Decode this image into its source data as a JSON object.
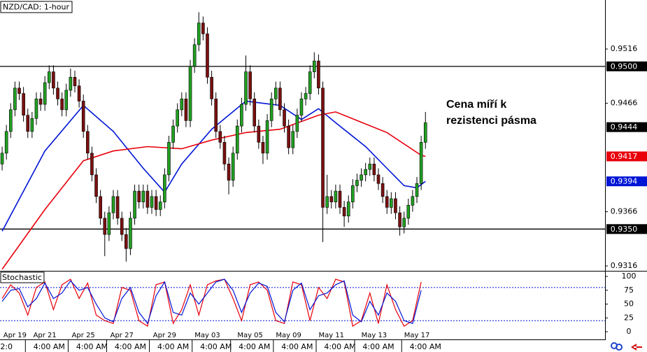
{
  "chart_data": [
    {
      "type": "candlestick",
      "title": "NZD/CAD: 1-hour",
      "annotation": [
        "Cena míří k",
        "rezistenci pásma"
      ],
      "up_color": "#22a022",
      "down_color": "#7a1010",
      "xlim": [
        -0.5,
        141
      ],
      "ylim": [
        0.93115,
        0.95612
      ],
      "yticks": [
        0.9316,
        0.9366,
        0.9466,
        0.9516
      ],
      "price_labels": [
        {
          "value": 0.95,
          "label": "0.9500",
          "color": "#000000",
          "line": true
        },
        {
          "value": 0.9444,
          "label": "0.9444",
          "color": "#000000",
          "line": false
        },
        {
          "value": 0.9417,
          "label": "0.9417",
          "color": "#e8000b",
          "line": false
        },
        {
          "value": 0.9394,
          "label": "0.9394",
          "color": "#0015d5",
          "line": false
        },
        {
          "value": 0.935,
          "label": "0.9350",
          "color": "#000000",
          "line": true
        }
      ],
      "candles": {
        "open": [
          0.941,
          0.942,
          0.944,
          0.946,
          0.948,
          0.9475,
          0.9455,
          0.944,
          0.9452,
          0.947,
          0.9465,
          0.9485,
          0.9495,
          0.948,
          0.947,
          0.946,
          0.9478,
          0.949,
          0.9482,
          0.9468,
          0.944,
          0.942,
          0.94,
          0.938,
          0.936,
          0.9345,
          0.9365,
          0.938,
          0.936,
          0.9345,
          0.9332,
          0.936,
          0.9385,
          0.9375,
          0.9385,
          0.937,
          0.938,
          0.9368,
          0.9375,
          0.94,
          0.943,
          0.9445,
          0.946,
          0.947,
          0.945,
          0.95,
          0.952,
          0.954,
          0.953,
          0.949,
          0.947,
          0.944,
          0.943,
          0.941,
          0.9395,
          0.942,
          0.9445,
          0.9465,
          0.9495,
          0.947,
          0.9445,
          0.943,
          0.942,
          0.945,
          0.947,
          0.948,
          0.946,
          0.9445,
          0.9425,
          0.944,
          0.9455,
          0.947,
          0.9475,
          0.9495,
          0.9505,
          0.948,
          0.937,
          0.938,
          0.9375,
          0.9385,
          0.937,
          0.9362,
          0.9375,
          0.939,
          0.9395,
          0.94,
          0.9405,
          0.941,
          0.94,
          0.9392,
          0.938,
          0.937,
          0.9378,
          0.9365,
          0.9352,
          0.936,
          0.9372,
          0.938,
          0.9392,
          0.943
        ],
        "high": [
          0.9426,
          0.9446,
          0.9466,
          0.9486,
          0.9486,
          0.9481,
          0.9461,
          0.9458,
          0.9476,
          0.9476,
          0.9491,
          0.9501,
          0.9501,
          0.9486,
          0.9476,
          0.9484,
          0.9498,
          0.9496,
          0.9488,
          0.9474,
          0.9446,
          0.9426,
          0.9406,
          0.9386,
          0.9366,
          0.9371,
          0.9386,
          0.9386,
          0.9366,
          0.9351,
          0.9366,
          0.9391,
          0.9391,
          0.9391,
          0.9391,
          0.9386,
          0.9386,
          0.9381,
          0.9406,
          0.9436,
          0.9451,
          0.9466,
          0.9476,
          0.9476,
          0.9506,
          0.9526,
          0.955,
          0.9546,
          0.9536,
          0.9496,
          0.9476,
          0.9446,
          0.9436,
          0.9416,
          0.9426,
          0.9451,
          0.9471,
          0.951,
          0.9501,
          0.9476,
          0.9451,
          0.9436,
          0.9456,
          0.9476,
          0.9486,
          0.9486,
          0.9466,
          0.9451,
          0.9446,
          0.9461,
          0.9476,
          0.9481,
          0.9501,
          0.9513,
          0.9511,
          0.9486,
          0.94,
          0.9386,
          0.9391,
          0.9391,
          0.9376,
          0.9381,
          0.9396,
          0.9401,
          0.9406,
          0.9411,
          0.9416,
          0.9416,
          0.9406,
          0.9398,
          0.9386,
          0.9384,
          0.9384,
          0.9371,
          0.9366,
          0.9378,
          0.9386,
          0.9398,
          0.9436,
          0.9458
        ],
        "low": [
          0.9404,
          0.9414,
          0.9434,
          0.9454,
          0.9469,
          0.9449,
          0.9434,
          0.9434,
          0.9446,
          0.9459,
          0.9459,
          0.9479,
          0.9474,
          0.9464,
          0.9454,
          0.9454,
          0.9472,
          0.9476,
          0.9462,
          0.9434,
          0.9414,
          0.9394,
          0.9374,
          0.9354,
          0.9325,
          0.9339,
          0.9359,
          0.9354,
          0.9339,
          0.932,
          0.9326,
          0.9354,
          0.9369,
          0.9369,
          0.9364,
          0.9364,
          0.9362,
          0.9362,
          0.9369,
          0.9394,
          0.9424,
          0.9439,
          0.9454,
          0.9444,
          0.9444,
          0.9494,
          0.9514,
          0.9524,
          0.9484,
          0.9464,
          0.9434,
          0.9424,
          0.9404,
          0.9382,
          0.9389,
          0.9414,
          0.9439,
          0.9459,
          0.9464,
          0.9439,
          0.9424,
          0.941,
          0.9414,
          0.9444,
          0.9464,
          0.9454,
          0.9439,
          0.9419,
          0.9419,
          0.9434,
          0.9449,
          0.9464,
          0.9469,
          0.9489,
          0.9474,
          0.9338,
          0.9364,
          0.9369,
          0.9369,
          0.9364,
          0.9352,
          0.9356,
          0.9369,
          0.9384,
          0.9389,
          0.9394,
          0.9399,
          0.9394,
          0.9386,
          0.9374,
          0.9364,
          0.9364,
          0.9359,
          0.9344,
          0.9346,
          0.9354,
          0.9366,
          0.9374,
          0.9386,
          0.9424
        ],
        "close": [
          0.942,
          0.944,
          0.946,
          0.948,
          0.9475,
          0.9455,
          0.944,
          0.9452,
          0.947,
          0.9465,
          0.9485,
          0.9495,
          0.948,
          0.947,
          0.946,
          0.9478,
          0.949,
          0.9482,
          0.9468,
          0.944,
          0.942,
          0.94,
          0.938,
          0.936,
          0.9345,
          0.9365,
          0.938,
          0.936,
          0.9345,
          0.9332,
          0.936,
          0.9385,
          0.9375,
          0.9385,
          0.937,
          0.938,
          0.9368,
          0.9375,
          0.94,
          0.943,
          0.9445,
          0.946,
          0.947,
          0.945,
          0.95,
          0.952,
          0.954,
          0.953,
          0.949,
          0.947,
          0.944,
          0.943,
          0.941,
          0.9395,
          0.942,
          0.9445,
          0.9465,
          0.9495,
          0.947,
          0.9445,
          0.943,
          0.942,
          0.945,
          0.947,
          0.948,
          0.946,
          0.9445,
          0.9425,
          0.944,
          0.9455,
          0.947,
          0.9475,
          0.9495,
          0.9505,
          0.948,
          0.937,
          0.938,
          0.9375,
          0.9385,
          0.937,
          0.9362,
          0.9375,
          0.939,
          0.9395,
          0.94,
          0.9405,
          0.941,
          0.94,
          0.9392,
          0.938,
          0.937,
          0.9378,
          0.9365,
          0.9352,
          0.936,
          0.9372,
          0.938,
          0.9392,
          0.943,
          0.9448
        ]
      },
      "series": [
        {
          "color": "#0015d5",
          "x": [
            0,
            10,
            19,
            26,
            33,
            38,
            42,
            49,
            57,
            65,
            70,
            74,
            78,
            85,
            90,
            94,
            97,
            99
          ],
          "values": [
            0.9348,
            0.9422,
            0.9464,
            0.944,
            0.9406,
            0.9384,
            0.941,
            0.9442,
            0.9468,
            0.9464,
            0.9451,
            0.9461,
            0.9448,
            0.9426,
            0.9406,
            0.939,
            0.9388,
            0.9394
          ]
        },
        {
          "color": "#e8000b",
          "x": [
            0,
            10,
            19,
            26,
            34,
            42,
            49,
            57,
            65,
            74,
            78,
            90,
            98,
            99
          ],
          "values": [
            0.9313,
            0.9368,
            0.9413,
            0.9422,
            0.9426,
            0.9424,
            0.9432,
            0.9439,
            0.9442,
            0.9455,
            0.9458,
            0.9439,
            0.9418,
            0.9417
          ]
        }
      ]
    },
    {
      "type": "line",
      "title": "Stochastic",
      "xlim": [
        -0.5,
        141
      ],
      "ylim": [
        -13.9,
        108.9
      ],
      "yticks": [
        0,
        25,
        50,
        75,
        100
      ],
      "levels": [
        80,
        20
      ],
      "level_color": "#0015d5",
      "xticks": [
        {
          "value": 3,
          "label": "Apr 19"
        },
        {
          "value": 10,
          "label": "Apr 21"
        },
        {
          "value": 19,
          "label": "Apr 25"
        },
        {
          "value": 28,
          "label": "Apr 27"
        },
        {
          "value": 38,
          "label": "Apr 29"
        },
        {
          "value": 48,
          "label": "May 03"
        },
        {
          "value": 58,
          "label": "May 05"
        },
        {
          "value": 67,
          "label": "May 09"
        },
        {
          "value": 77,
          "label": "May 11"
        },
        {
          "value": 87,
          "label": "May 13"
        },
        {
          "value": 97,
          "label": "May 17"
        }
      ],
      "xticks2": [
        {
          "value": 1,
          "label": "2:0"
        },
        {
          "value": 11,
          "label": "4:00 AM"
        },
        {
          "value": 21,
          "label": "4:00 AM"
        },
        {
          "value": 30,
          "label": "4:00 AM"
        },
        {
          "value": 40,
          "label": "4:00 AM"
        },
        {
          "value": 50,
          "label": "4:00 AM"
        },
        {
          "value": 59,
          "label": "4:00 AM"
        },
        {
          "value": 69,
          "label": "4:00 AM"
        },
        {
          "value": 79,
          "label": "4:00 AM"
        },
        {
          "value": 88,
          "label": "4:00 AM"
        },
        {
          "value": 99,
          "label": "4:00 AM"
        }
      ],
      "x": [
        0,
        2,
        4,
        6,
        8,
        10,
        12,
        14,
        16,
        18,
        20,
        22,
        24,
        26,
        28,
        30,
        32,
        34,
        36,
        38,
        40,
        42,
        44,
        46,
        48,
        50,
        52,
        54,
        56,
        58,
        60,
        62,
        64,
        66,
        68,
        70,
        72,
        74,
        76,
        78,
        80,
        82,
        84,
        86,
        88,
        90,
        92,
        94,
        96,
        98
      ],
      "series": [
        {
          "color": "#e8000b",
          "values": [
            60,
            85,
            70,
            30,
            80,
            90,
            40,
            85,
            95,
            60,
            88,
            30,
            20,
            15,
            80,
            75,
            20,
            10,
            85,
            90,
            15,
            40,
            85,
            30,
            85,
            92,
            95,
            60,
            20,
            85,
            90,
            75,
            20,
            15,
            90,
            85,
            20,
            80,
            60,
            95,
            90,
            10,
            20,
            70,
            15,
            85,
            40,
            10,
            20,
            90
          ]
        },
        {
          "color": "#0015d5",
          "values": [
            55,
            75,
            78,
            45,
            60,
            88,
            60,
            70,
            92,
            75,
            80,
            50,
            25,
            18,
            60,
            80,
            35,
            15,
            65,
            90,
            35,
            30,
            70,
            50,
            70,
            90,
            95,
            75,
            35,
            70,
            88,
            82,
            35,
            18,
            75,
            88,
            40,
            65,
            70,
            85,
            92,
            30,
            18,
            55,
            30,
            70,
            55,
            20,
            15,
            75
          ]
        }
      ]
    }
  ]
}
